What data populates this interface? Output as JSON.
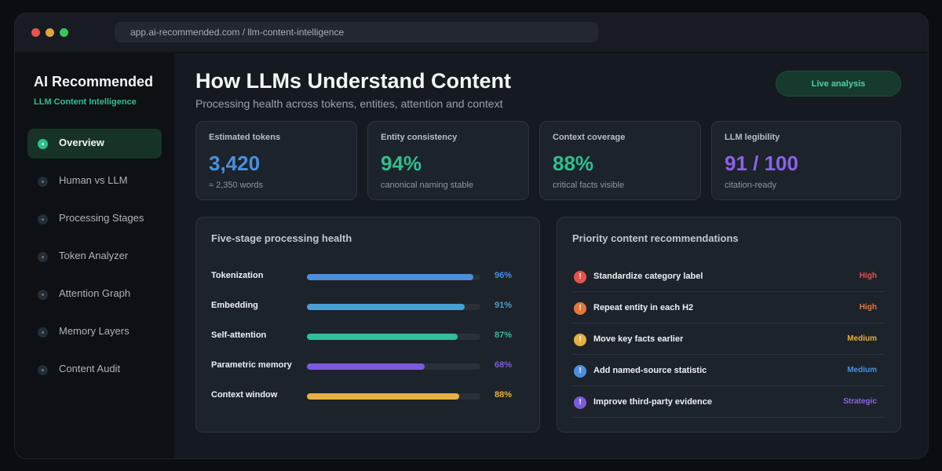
{
  "browser": {
    "url": "app.ai-recommended.com / llm-content-intelligence"
  },
  "sidebar": {
    "brand": "AI Recommended",
    "subtitle": "LLM Content Intelligence",
    "items": [
      {
        "label": "Overview",
        "active": true
      },
      {
        "label": "Human vs LLM"
      },
      {
        "label": "Processing Stages"
      },
      {
        "label": "Token Analyzer"
      },
      {
        "label": "Attention Graph"
      },
      {
        "label": "Memory Layers"
      },
      {
        "label": "Content Audit"
      }
    ]
  },
  "header": {
    "title": "How LLMs Understand Content",
    "subtitle": "Processing health across tokens, entities, attention and context",
    "live_button": "Live analysis"
  },
  "kpis": [
    {
      "label": "Estimated tokens",
      "value": "3,420",
      "note": "≈ 2,350 words",
      "color": "#4a90e2"
    },
    {
      "label": "Entity consistency",
      "value": "94%",
      "note": "canonical naming stable",
      "color": "#2fbf8f"
    },
    {
      "label": "Context coverage",
      "value": "88%",
      "note": "critical facts visible",
      "color": "#2fbf8f"
    },
    {
      "label": "LLM legibility",
      "value": "91 / 100",
      "note": "citation-ready",
      "color": "#8a63e8"
    }
  ],
  "stages": {
    "title": "Five-stage processing health",
    "items": [
      {
        "label": "Tokenization",
        "value": 96,
        "pct_label": "96%",
        "color": "#4a8fe0"
      },
      {
        "label": "Embedding",
        "value": 91,
        "pct_label": "91%",
        "color": "#4a9ed0"
      },
      {
        "label": "Self-attention",
        "value": 87,
        "pct_label": "87%",
        "color": "#2fbf9a"
      },
      {
        "label": "Parametric memory",
        "value": 68,
        "pct_label": "68%",
        "color": "#7b5ae0"
      },
      {
        "label": "Context window",
        "value": 88,
        "pct_label": "88%",
        "color": "#e8b040"
      }
    ]
  },
  "recommendations": {
    "title": "Priority content recommendations",
    "items": [
      {
        "label": "Standardize category label",
        "priority": "High",
        "icon": "!",
        "icon_color": "#e5534b",
        "priority_color": "#e5534b"
      },
      {
        "label": "Repeat entity in each H2",
        "priority": "High",
        "icon": "!",
        "icon_color": "#e5773b",
        "priority_color": "#e5773b"
      },
      {
        "label": "Move key facts earlier",
        "priority": "Medium",
        "icon": "!",
        "icon_color": "#e8b040",
        "priority_color": "#e8b040"
      },
      {
        "label": "Add named-source statistic",
        "priority": "Medium",
        "icon": "!",
        "icon_color": "#4a8fe0",
        "priority_color": "#4a8fe0"
      },
      {
        "label": "Improve third-party evidence",
        "priority": "Strategic",
        "icon": "!",
        "icon_color": "#7b5ae0",
        "priority_color": "#8a63e8"
      }
    ]
  }
}
